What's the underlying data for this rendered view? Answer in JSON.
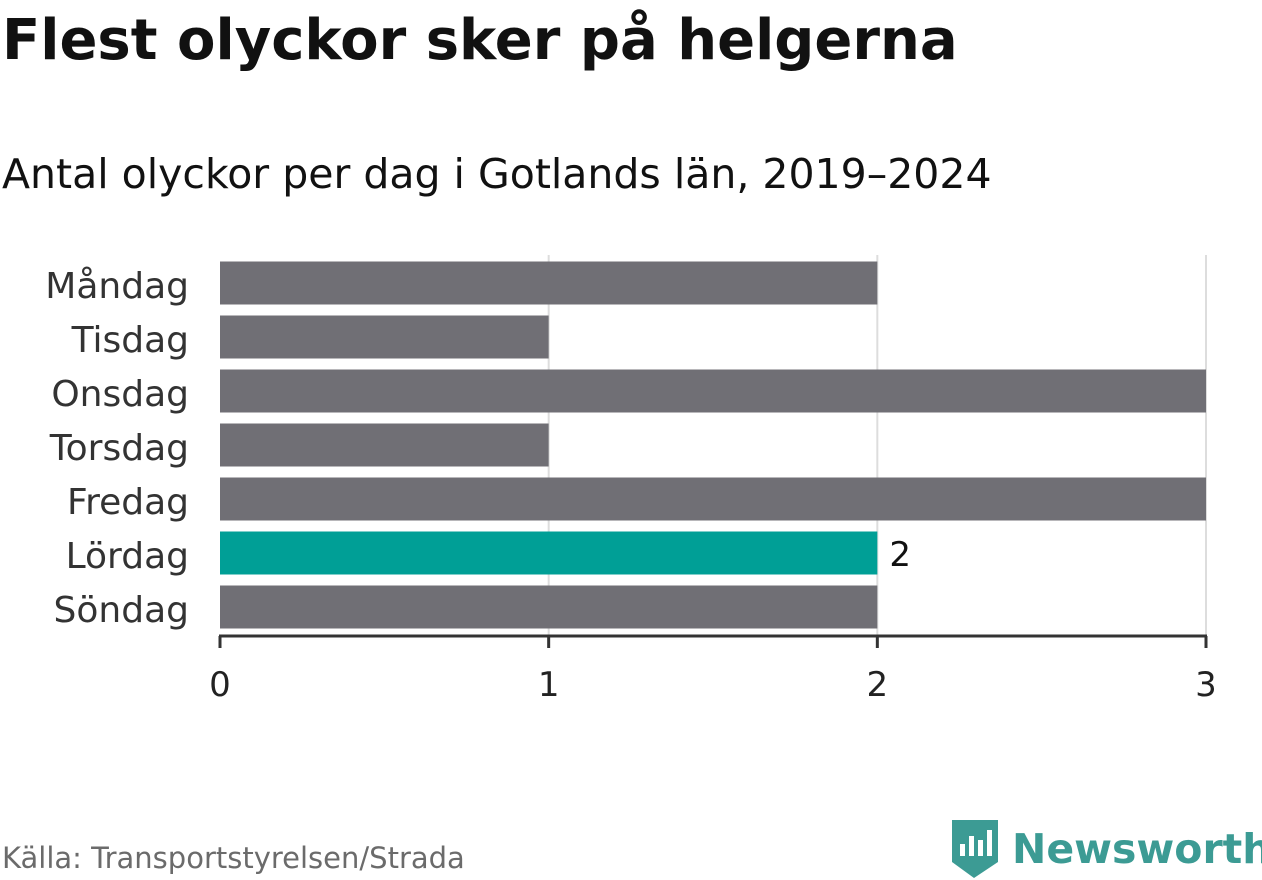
{
  "title": "Flest olyckor sker på helgerna",
  "subtitle": "Antal olyckor per dag i Gotlands län, 2019–2024",
  "source": "Källa: Transportstyrelsen/Strada",
  "brand": {
    "name": "Newsworthy",
    "icon": "newsworthy-logo-icon",
    "color": "#3c9b94"
  },
  "colors": {
    "bar": "#706f75",
    "highlight": "#009f96",
    "grid": "#dddddd",
    "axis": "#333333"
  },
  "chart_data": {
    "type": "bar",
    "orientation": "horizontal",
    "categories": [
      "Måndag",
      "Tisdag",
      "Onsdag",
      "Torsdag",
      "Fredag",
      "Lördag",
      "Söndag"
    ],
    "values": [
      2,
      1,
      3,
      1,
      3,
      2,
      2
    ],
    "highlight_index": 5,
    "data_labels": [
      null,
      null,
      null,
      null,
      null,
      "2",
      null
    ],
    "xlim": [
      0,
      3
    ],
    "xticks": [
      "0",
      "1",
      "2",
      "3"
    ],
    "grid": true,
    "legend": "none"
  }
}
